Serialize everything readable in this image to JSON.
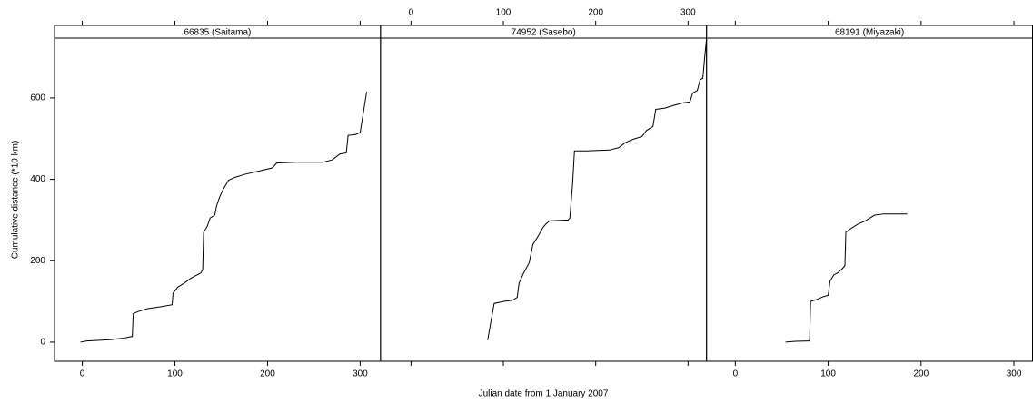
{
  "x_label": "Julian date from 1 January 2007",
  "y_label": "Cumulative distance (*10 km)",
  "chart_data": [
    {
      "type": "line",
      "title": "66835 (Saitama)",
      "color": "#000000",
      "x": [
        -2,
        5,
        30,
        45,
        54,
        55,
        60,
        70,
        85,
        97,
        98,
        103,
        110,
        118,
        128,
        130,
        131,
        135,
        138,
        143,
        145,
        148,
        152,
        158,
        165,
        175,
        190,
        205,
        210,
        230,
        260,
        270,
        278,
        285,
        287,
        295,
        300,
        307
      ],
      "values": [
        0,
        3,
        6,
        10,
        14,
        70,
        75,
        82,
        87,
        92,
        120,
        135,
        145,
        158,
        170,
        178,
        270,
        285,
        305,
        312,
        335,
        355,
        375,
        398,
        405,
        412,
        420,
        428,
        440,
        442,
        442,
        448,
        462,
        465,
        508,
        510,
        515,
        615
      ],
      "xlim": [
        -30,
        322
      ],
      "ylim": [
        -47,
        747
      ],
      "xticks": [
        0,
        100,
        200,
        300
      ],
      "yticks": [
        0,
        200,
        400,
        600
      ]
    },
    {
      "type": "line",
      "title": "74952 (Sasebo)",
      "color": "#000000",
      "x": [
        83,
        90,
        100,
        110,
        115,
        117,
        122,
        128,
        132,
        138,
        143,
        146,
        150,
        170,
        172,
        175,
        177,
        190,
        215,
        225,
        232,
        240,
        250,
        255,
        262,
        265,
        275,
        285,
        295,
        302,
        305,
        310,
        313,
        316,
        318,
        320
      ],
      "values": [
        5,
        95,
        100,
        103,
        110,
        145,
        170,
        195,
        240,
        262,
        282,
        290,
        298,
        300,
        305,
        390,
        470,
        470,
        472,
        478,
        490,
        498,
        505,
        520,
        530,
        572,
        575,
        582,
        588,
        590,
        612,
        618,
        645,
        648,
        700,
        745
      ],
      "xlim": [
        -33,
        320
      ],
      "ylim": [
        -47,
        747
      ],
      "xticks": [
        0,
        100,
        200,
        300
      ]
    },
    {
      "type": "line",
      "title": "68191 (Miyazaki)",
      "color": "#000000",
      "x": [
        54,
        65,
        80,
        81,
        88,
        95,
        100,
        102,
        106,
        110,
        115,
        118,
        119,
        125,
        132,
        140,
        145,
        150,
        160,
        185
      ],
      "values": [
        0,
        2,
        3,
        100,
        105,
        112,
        115,
        150,
        165,
        170,
        180,
        188,
        270,
        280,
        290,
        298,
        305,
        312,
        315,
        315
      ],
      "xlim": [
        -31,
        320
      ],
      "ylim": [
        -47,
        747
      ],
      "xticks": [
        0,
        100,
        200,
        300
      ]
    }
  ]
}
